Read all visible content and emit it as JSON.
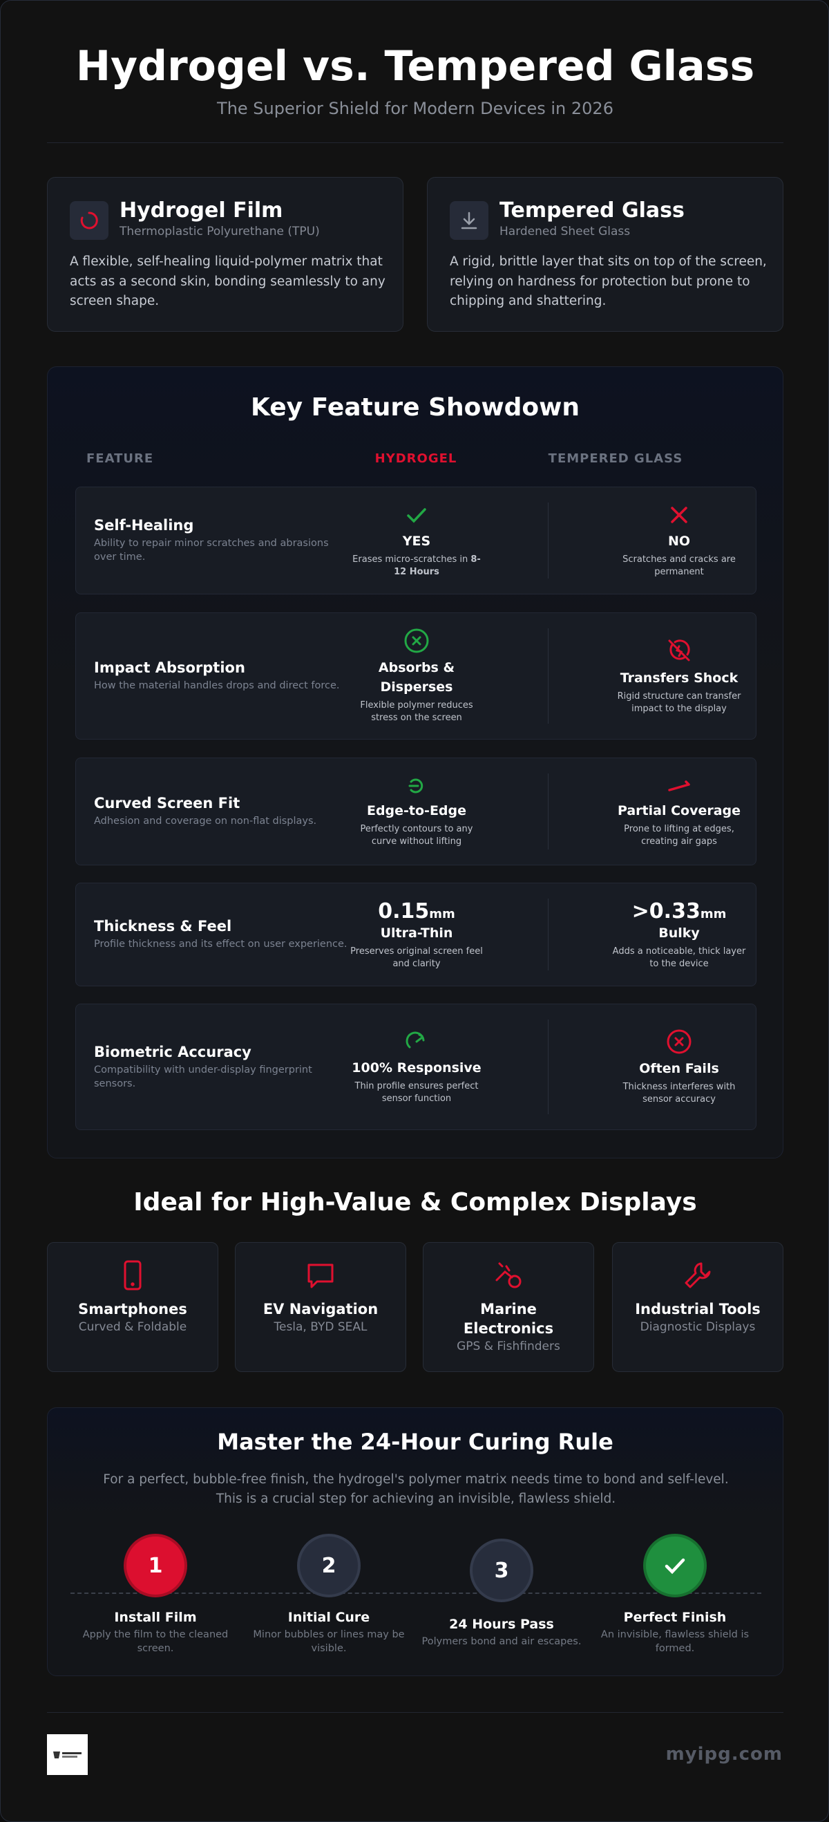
{
  "header": {
    "title": "Hydrogel vs. Tempered Glass",
    "subtitle": "The Superior Shield for Modern Devices in 2026"
  },
  "cards": [
    {
      "title": "Hydrogel Film",
      "subtitle": "Thermoplastic Polyurethane (TPU)",
      "description": "A flexible, self-healing liquid-polymer matrix that acts as a second skin, bonding seamlessly to any screen shape."
    },
    {
      "title": "Tempered Glass",
      "subtitle": "Hardened Sheet Glass",
      "description": "A rigid, brittle layer that sits on top of the screen, relying on hardness for protection but prone to chipping and shattering."
    }
  ],
  "comparison": {
    "title": "Key Feature Showdown",
    "columns": [
      "FEATURE",
      "HYDROGEL",
      "TEMPERED GLASS"
    ],
    "rows": [
      {
        "feature": "Self-Healing",
        "description": "Ability to repair minor scratches and abrasions over time.",
        "hydrogel": {
          "headline": "YES",
          "detail": "Erases micro-scratches in",
          "detail_bold": "8-12 Hours"
        },
        "glass": {
          "headline": "NO",
          "detail": "Scratches and cracks are permanent"
        }
      },
      {
        "feature": "Impact Absorption",
        "description": "How the material handles drops and direct force.",
        "hydrogel": {
          "headline": "Absorbs & Disperses",
          "detail": "Flexible polymer reduces stress on the screen"
        },
        "glass": {
          "headline": "Transfers Shock",
          "detail": "Rigid structure can transfer impact to the display"
        }
      },
      {
        "feature": "Curved Screen Fit",
        "description": "Adhesion and coverage on non-flat displays.",
        "hydrogel": {
          "headline": "Edge-to-Edge",
          "detail": "Perfectly contours to any curve without lifting"
        },
        "glass": {
          "headline": "Partial Coverage",
          "detail": "Prone to lifting at edges, creating air gaps"
        }
      },
      {
        "feature": "Thickness & Feel",
        "description": "Profile thickness and its effect on user experience.",
        "hydrogel": {
          "value": "0.15",
          "unit": "mm",
          "headline": "Ultra-Thin",
          "detail": "Preserves original screen feel and clarity"
        },
        "glass": {
          "value": ">0.33",
          "unit": "mm",
          "headline": "Bulky",
          "detail": "Adds a noticeable, thick layer to the device"
        }
      },
      {
        "feature": "Biometric Accuracy",
        "description": "Compatibility with under-display fingerprint sensors.",
        "hydrogel": {
          "headline": "100% Responsive",
          "detail": "Thin profile ensures perfect sensor function"
        },
        "glass": {
          "headline": "Often Fails",
          "detail": "Thickness interferes with sensor accuracy"
        }
      }
    ]
  },
  "ideal": {
    "title": "Ideal for High-Value & Complex Displays",
    "items": [
      {
        "title": "Smartphones",
        "subtitle": "Curved & Foldable"
      },
      {
        "title": "EV Navigation",
        "subtitle": "Tesla, BYD SEAL"
      },
      {
        "title": "Marine Electronics",
        "subtitle": "GPS & Fishfinders"
      },
      {
        "title": "Industrial Tools",
        "subtitle": "Diagnostic Displays"
      }
    ]
  },
  "curing": {
    "title": "Master the 24-Hour Curing Rule",
    "intro": "For a perfect, bubble-free finish, the hydrogel's polymer matrix needs time to bond and self-level. This is a crucial step for achieving an invisible, flawless shield.",
    "steps": [
      {
        "number": "1",
        "title": "Install Film",
        "description": "Apply the film to the cleaned screen."
      },
      {
        "number": "2",
        "title": "Initial Cure",
        "description": "Minor bubbles or lines may be visible."
      },
      {
        "number": "3",
        "title": "24 Hours Pass",
        "description": "Polymers bond and air escapes."
      },
      {
        "title": "Perfect Finish",
        "description": "An invisible, flawless shield is formed."
      }
    ]
  },
  "footer": {
    "site": "myipg.com"
  }
}
